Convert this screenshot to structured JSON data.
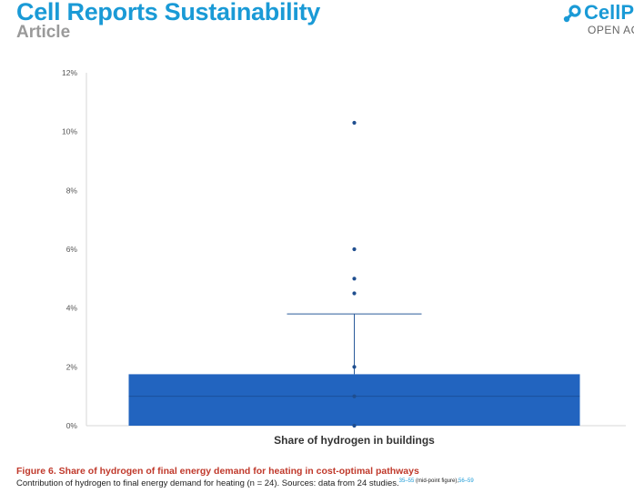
{
  "header": {
    "journal": "Cell Reports Sustainability",
    "article_type": "Article",
    "brand": "CellPr",
    "open_access": "OPEN AC"
  },
  "figure": {
    "title": "Figure 6. Share of hydrogen of final energy demand for heating in cost-optimal pathways",
    "caption": "Contribution of hydrogen to final energy demand for heating (n = 24). Sources: data from 24 studies.",
    "ref1": "35–55",
    "ref_note": " (mid-point figure),",
    "ref2": "56–59"
  },
  "chart_data": {
    "type": "box",
    "categories": [
      "Share of hydrogen in buildings"
    ],
    "xlabel": "Share of hydrogen in buildings",
    "ylabel": "",
    "ylim": [
      0,
      12
    ],
    "yticks": [
      0,
      2,
      4,
      6,
      8,
      10,
      12
    ],
    "ytick_labels": [
      "0%",
      "2%",
      "4%",
      "6%",
      "8%",
      "10%",
      "12%"
    ],
    "box": {
      "q1": 0,
      "median": 1.0,
      "q3": 1.75,
      "whisker_low": 0,
      "whisker_high": 3.8
    },
    "points": [
      0,
      1.0,
      2.0,
      4.5,
      5.0,
      6.0,
      10.3
    ],
    "colors": {
      "box": "#2264bf",
      "line": "#2a5a9a",
      "point": "#1f4e8f",
      "axis": "#d7d7d7"
    },
    "grid": false
  }
}
